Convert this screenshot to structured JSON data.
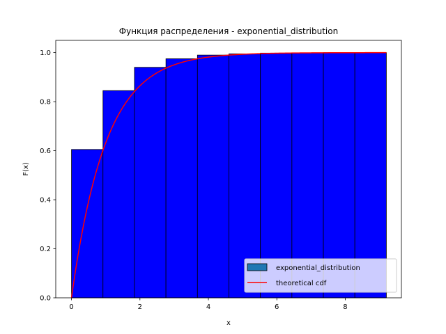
{
  "chart_data": {
    "type": "bar",
    "title": "Функция распределения - exponential_distribution",
    "xlabel": "x",
    "ylabel": "F(x)",
    "xlim": [
      -0.46,
      9.64
    ],
    "ylim": [
      0.0,
      1.05
    ],
    "xticks": [
      0,
      2,
      4,
      6,
      8
    ],
    "yticks": [
      0.0,
      0.2,
      0.4,
      0.6,
      0.8,
      1.0
    ],
    "xtick_labels": [
      "0",
      "2",
      "4",
      "6",
      "8"
    ],
    "ytick_labels": [
      "0.0",
      "0.2",
      "0.4",
      "0.6",
      "0.8",
      "1.0"
    ],
    "grid": false,
    "legend_position": "lower-right",
    "bins": [
      {
        "x0": 0.0,
        "x1": 0.92,
        "value": 0.605
      },
      {
        "x0": 0.92,
        "x1": 1.84,
        "value": 0.845
      },
      {
        "x0": 1.84,
        "x1": 2.76,
        "value": 0.94
      },
      {
        "x0": 2.76,
        "x1": 3.68,
        "value": 0.975
      },
      {
        "x0": 3.68,
        "x1": 4.6,
        "value": 0.99
      },
      {
        "x0": 4.6,
        "x1": 5.52,
        "value": 0.995
      },
      {
        "x0": 5.52,
        "x1": 6.44,
        "value": 0.998
      },
      {
        "x0": 6.44,
        "x1": 7.36,
        "value": 0.999
      },
      {
        "x0": 7.36,
        "x1": 8.28,
        "value": 1.0
      },
      {
        "x0": 8.28,
        "x1": 9.2,
        "value": 1.0
      }
    ],
    "theoretical_cdf": {
      "rate": 1.0,
      "x_max": 9.2
    },
    "series": [
      {
        "name": "exponential_distribution",
        "kind": "histogram",
        "color": "#0000ff",
        "legend_color": "#1f77b4"
      },
      {
        "name": "theoretical cdf",
        "kind": "line",
        "color": "#ff0000"
      }
    ]
  }
}
